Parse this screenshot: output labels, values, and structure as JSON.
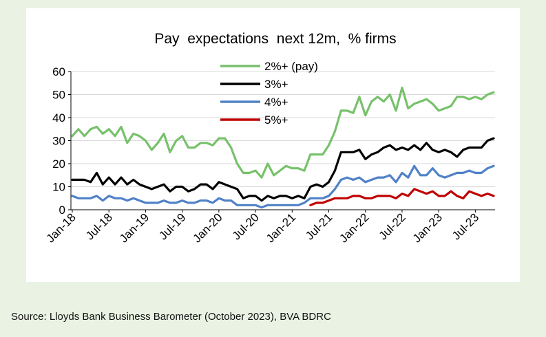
{
  "source": "Source: Lloyds Bank Business Barometer (October 2023), BVA BDRC",
  "chart_data": {
    "type": "line",
    "title": "Pay  expectations  next 12m,  % firms",
    "ylim": [
      0,
      60
    ],
    "yticks": [
      0,
      10,
      20,
      30,
      40,
      50,
      60
    ],
    "x_labels": [
      "Jan-18",
      "Jul-18",
      "Jan-19",
      "Jul-19",
      "Jan-20",
      "Jul-20",
      "Jan-21",
      "Jul-21",
      "Jan-22",
      "Jul-22",
      "Jan-23",
      "Jul-23"
    ],
    "x_label_months": [
      0,
      6,
      12,
      18,
      24,
      30,
      36,
      42,
      48,
      54,
      60,
      66
    ],
    "x": [
      "Jan-18",
      "Feb-18",
      "Mar-18",
      "Apr-18",
      "May-18",
      "Jun-18",
      "Jul-18",
      "Aug-18",
      "Sep-18",
      "Oct-18",
      "Nov-18",
      "Dec-18",
      "Jan-19",
      "Feb-19",
      "Mar-19",
      "Apr-19",
      "May-19",
      "Jun-19",
      "Jul-19",
      "Aug-19",
      "Sep-19",
      "Oct-19",
      "Nov-19",
      "Dec-19",
      "Jan-20",
      "Feb-20",
      "Mar-20",
      "Apr-20",
      "May-20",
      "Jun-20",
      "Jul-20",
      "Aug-20",
      "Sep-20",
      "Oct-20",
      "Nov-20",
      "Dec-20",
      "Jan-21",
      "Feb-21",
      "Mar-21",
      "Apr-21",
      "May-21",
      "Jun-21",
      "Jul-21",
      "Aug-21",
      "Sep-21",
      "Oct-21",
      "Nov-21",
      "Dec-21",
      "Jan-22",
      "Feb-22",
      "Mar-22",
      "Apr-22",
      "May-22",
      "Jun-22",
      "Jul-22",
      "Aug-22",
      "Sep-22",
      "Oct-22",
      "Nov-22",
      "Dec-22",
      "Jan-23",
      "Feb-23",
      "Mar-23",
      "Apr-23",
      "May-23",
      "Jun-23",
      "Jul-23",
      "Aug-23",
      "Sep-23",
      "Oct-23"
    ],
    "legend_position": "top-center",
    "series": [
      {
        "name": "2%+ (pay)",
        "color": "#77c16b",
        "values": [
          32,
          35,
          32,
          35,
          36,
          33,
          35,
          32,
          36,
          29,
          33,
          32,
          30,
          26,
          29,
          33,
          25,
          30,
          32,
          27,
          27,
          29,
          29,
          28,
          31,
          31,
          27,
          20,
          16,
          16,
          17,
          14,
          20,
          15,
          17,
          19,
          18,
          18,
          17,
          24,
          24,
          24,
          28,
          34,
          43,
          43,
          42,
          49,
          41,
          47,
          49,
          47,
          50,
          43,
          53,
          44,
          46,
          47,
          48,
          46,
          43,
          44,
          45,
          49,
          49,
          48,
          49,
          48,
          50,
          51
        ]
      },
      {
        "name": "3%+",
        "color": "#000000",
        "values": [
          13,
          13,
          13,
          12,
          16,
          11,
          14,
          11,
          14,
          11,
          13,
          11,
          10,
          9,
          10,
          11,
          8,
          10,
          10,
          8,
          9,
          11,
          11,
          9,
          12,
          11,
          10,
          9,
          5,
          6,
          6,
          4,
          6,
          5,
          6,
          6,
          5,
          6,
          5,
          10,
          11,
          10,
          12,
          17,
          25,
          25,
          25,
          26,
          22,
          24,
          25,
          27,
          28,
          26,
          27,
          26,
          28,
          26,
          29,
          26,
          25,
          26,
          25,
          23,
          26,
          27,
          27,
          27,
          30,
          31
        ]
      },
      {
        "name": "4%+",
        "color": "#4f81c7",
        "values": [
          6,
          5,
          5,
          5,
          6,
          4,
          6,
          5,
          5,
          4,
          5,
          4,
          3,
          3,
          3,
          4,
          3,
          3,
          4,
          3,
          3,
          4,
          4,
          3,
          5,
          4,
          4,
          2,
          2,
          2,
          2,
          1,
          2,
          2,
          2,
          2,
          2,
          2,
          3,
          5,
          5,
          5,
          6,
          9,
          13,
          14,
          13,
          14,
          12,
          13,
          14,
          14,
          15,
          12,
          16,
          14,
          19,
          15,
          15,
          18,
          15,
          14,
          15,
          16,
          16,
          17,
          16,
          16,
          18,
          19
        ]
      },
      {
        "name": "5%+",
        "color": "#c00000",
        "values": [
          null,
          null,
          null,
          null,
          null,
          null,
          null,
          null,
          null,
          null,
          null,
          null,
          null,
          null,
          null,
          null,
          null,
          null,
          null,
          null,
          null,
          null,
          null,
          null,
          null,
          null,
          null,
          null,
          null,
          null,
          null,
          null,
          null,
          null,
          null,
          null,
          null,
          null,
          null,
          2,
          3,
          3,
          4,
          5,
          5,
          5,
          6,
          6,
          5,
          5,
          6,
          6,
          6,
          5,
          7,
          6,
          9,
          8,
          7,
          8,
          6,
          6,
          8,
          6,
          5,
          8,
          7,
          6,
          7,
          6
        ]
      }
    ]
  }
}
